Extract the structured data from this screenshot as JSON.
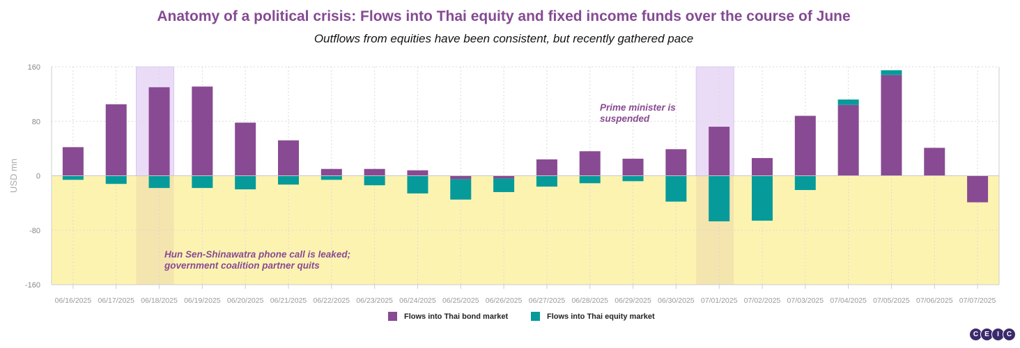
{
  "title": "Anatomy of a political crisis: Flows into Thai equity and fixed income funds over the course of June",
  "subtitle": "Outflows from equities have been consistent, but recently gathered pace",
  "colors": {
    "bond": "#884a92",
    "equity": "#069b9a",
    "negative_band": "#fdf3b1",
    "event_band": "#eadcf7",
    "event_text": "#884a92",
    "title": "#844a93",
    "grid": "#d9d9d9"
  },
  "logo": {
    "letters": [
      "C",
      "E",
      "I",
      "C"
    ]
  },
  "chart_data": {
    "type": "bar",
    "stacked": true,
    "ylabel": "USD mn",
    "ylim": [
      -160,
      160
    ],
    "yticks": [
      -160,
      -80,
      0,
      80,
      160
    ],
    "grid": true,
    "legend_position": "bottom",
    "categories": [
      "06/16/2025",
      "06/17/2025",
      "06/18/2025",
      "06/19/2025",
      "06/20/2025",
      "06/21/2025",
      "06/22/2025",
      "06/23/2025",
      "06/24/2025",
      "06/25/2025",
      "06/26/2025",
      "06/27/2025",
      "06/28/2025",
      "06/29/2025",
      "06/30/2025",
      "07/01/2025",
      "07/02/2025",
      "07/03/2025",
      "07/04/2025",
      "07/05/2025",
      "07/06/2025",
      "07/07/2025"
    ],
    "series": [
      {
        "name": "Flows into Thai bond market",
        "values": [
          42,
          105,
          130,
          131,
          78,
          52,
          10,
          10,
          8,
          -5,
          -4,
          24,
          36,
          25,
          39,
          72,
          26,
          88,
          104,
          148,
          41,
          -39
        ]
      },
      {
        "name": "Flows into Thai equity market",
        "values": [
          -6,
          -12,
          -18,
          -18,
          -20,
          -13,
          -6,
          -14,
          -26,
          -30,
          -20,
          -16,
          -11,
          -8,
          -38,
          -67,
          -66,
          -21,
          8,
          7,
          0,
          0
        ]
      }
    ],
    "shaded_regions": [
      {
        "type": "negative-range",
        "from": -160,
        "to": 0
      },
      {
        "type": "event",
        "category": "06/18/2025"
      },
      {
        "type": "event",
        "category": "07/01/2025"
      }
    ],
    "annotations": [
      {
        "category": "06/18/2025",
        "lines": [
          "Hun Sen-Shinawatra phone call is leaked;",
          "government coalition partner quits"
        ]
      },
      {
        "category": "07/01/2025",
        "lines": [
          "Prime minister is",
          "suspended"
        ]
      }
    ]
  }
}
